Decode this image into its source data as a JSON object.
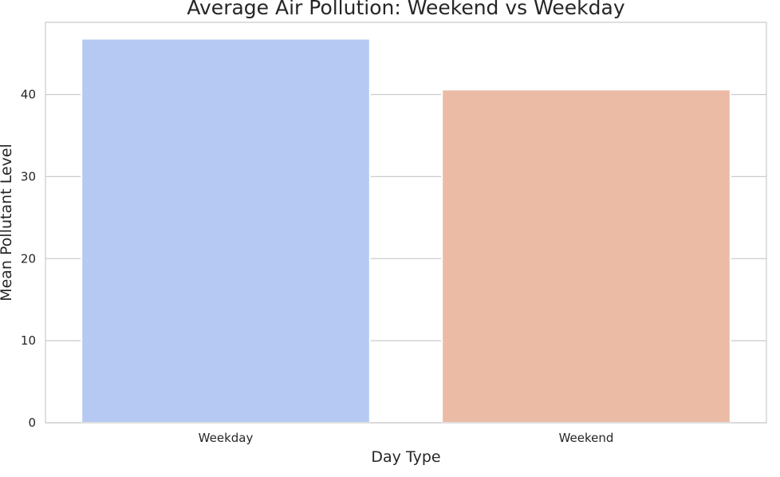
{
  "chart_data": {
    "type": "bar",
    "title": "Average Air Pollution: Weekend vs Weekday",
    "xlabel": "Day Type",
    "ylabel": "Mean Pollutant Level",
    "categories": [
      "Weekday",
      "Weekend"
    ],
    "values": [
      46.8,
      40.6
    ],
    "colors": [
      "#b5c9f3",
      "#ecbba5"
    ],
    "ylim": [
      0,
      48.8
    ],
    "yticks": [
      0,
      10,
      20,
      30,
      40
    ],
    "grid": true,
    "grid_color": "#cccccc",
    "axes_edge_color": "#cccccc",
    "background": "#ffffff"
  }
}
